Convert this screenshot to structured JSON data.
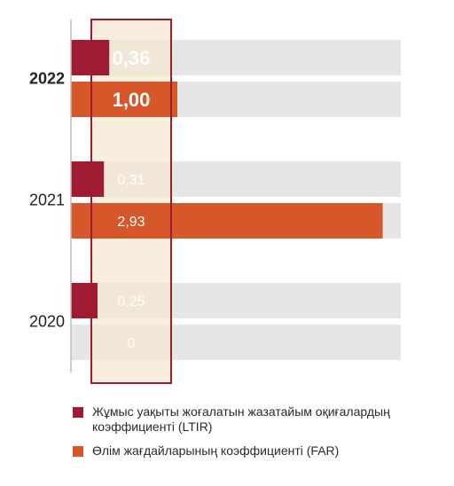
{
  "chart_data": {
    "type": "bar",
    "orientation": "horizontal",
    "categories": [
      "2022",
      "2021",
      "2020"
    ],
    "highlight_category": "2022",
    "series": [
      {
        "name": "Жұмыс уақыты жоғалатын жазатайым оқиғалардың коэффициенті (LTIR)",
        "color": "#9e1b32",
        "values": [
          0.36,
          0.31,
          0.25
        ],
        "labels": [
          "0,36",
          "0,31",
          "0,25"
        ]
      },
      {
        "name": "Өлім жағдайларының коэффициенті (FAR)",
        "color": "#d5572a",
        "values": [
          1.0,
          2.93,
          0
        ],
        "labels": [
          "1,00",
          "2,93",
          "0"
        ]
      }
    ],
    "xlim": [
      0,
      3.1
    ],
    "title": "",
    "xlabel": "",
    "ylabel": "",
    "legend_position": "bottom",
    "colors": {
      "track": "#e6e6e6",
      "highlight_fill": "#f7e7cf",
      "highlight_border": "#9e1b32"
    }
  },
  "legend": [
    {
      "label": "Жұмыс уақыты жоғалатын жазатайым оқиғалардың коэффициенті (LTIR)",
      "color": "#9e1b32"
    },
    {
      "label": "Өлім жағдайларының коэффициенті (FAR)",
      "color": "#d5572a"
    }
  ]
}
